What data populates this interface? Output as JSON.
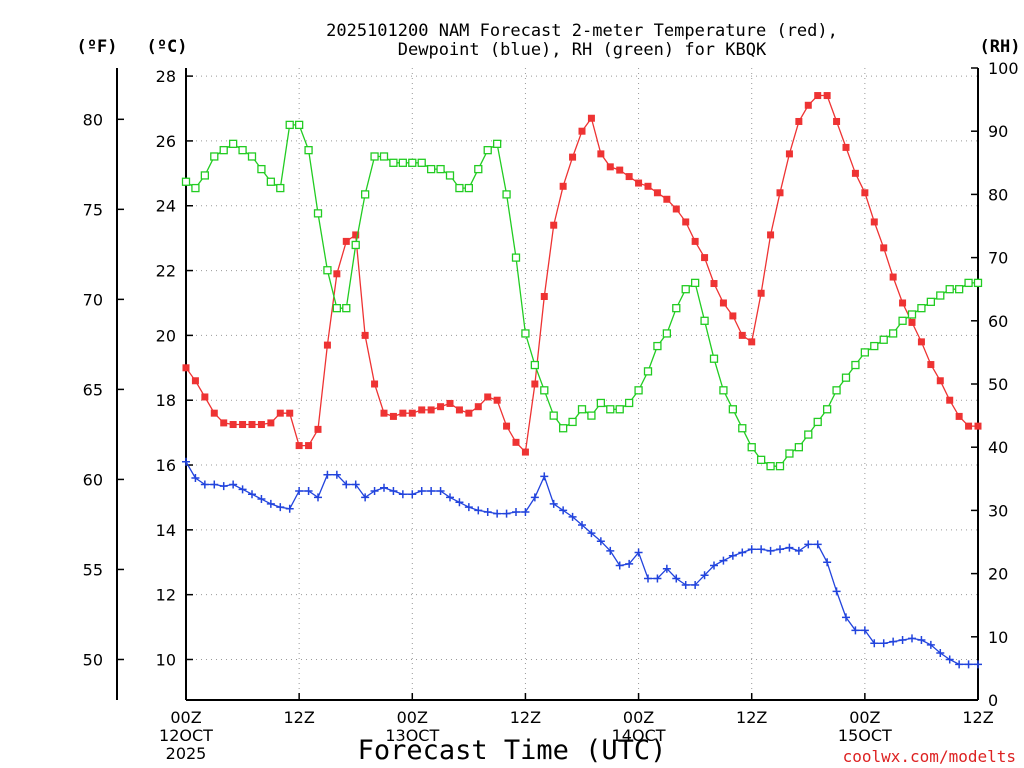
{
  "chart_data": {
    "type": "line",
    "title": {
      "line1": "2025101200 NAM Forecast 2-meter Temperature (red),",
      "line2": "Dewpoint (blue), RH (green) for KBQK"
    },
    "unit_labels": {
      "fahrenheit": "(ºF)",
      "celsius": "(ºC)",
      "rh": "(RH)"
    },
    "xlabel": "Forecast Time (UTC)",
    "credit": "coolwx.com/modelts",
    "x_unit": "forecast hour",
    "xlim": [
      0,
      84
    ],
    "x_ticks": [
      {
        "hour": 0,
        "label": "00Z",
        "date": "12OCT",
        "year": "2025"
      },
      {
        "hour": 12,
        "label": "12Z",
        "date": "",
        "year": ""
      },
      {
        "hour": 24,
        "label": "00Z",
        "date": "13OCT",
        "year": ""
      },
      {
        "hour": 36,
        "label": "12Z",
        "date": "",
        "year": ""
      },
      {
        "hour": 48,
        "label": "00Z",
        "date": "14OCT",
        "year": ""
      },
      {
        "hour": 60,
        "label": "12Z",
        "date": "",
        "year": ""
      },
      {
        "hour": 72,
        "label": "00Z",
        "date": "15OCT",
        "year": ""
      },
      {
        "hour": 84,
        "label": "12Z",
        "date": "",
        "year": ""
      }
    ],
    "ylim_celsius": [
      8.75,
      28.25
    ],
    "celsius_ticks": [
      10,
      12,
      14,
      16,
      18,
      20,
      22,
      24,
      26,
      28
    ],
    "fahrenheit_ticks": [
      50,
      55,
      60,
      65,
      70,
      75,
      80
    ],
    "ylim_rh": [
      0,
      100
    ],
    "rh_ticks": [
      0,
      10,
      20,
      30,
      40,
      50,
      60,
      70,
      80,
      90,
      100
    ],
    "grid": true,
    "series": [
      {
        "name": "2-meter Temperature",
        "axis": "celsius",
        "color": "#ee3333",
        "marker": "filled-square",
        "x": [
          0,
          1,
          2,
          3,
          4,
          5,
          6,
          7,
          8,
          9,
          10,
          11,
          12,
          13,
          14,
          15,
          16,
          17,
          18,
          19,
          20,
          21,
          22,
          23,
          24,
          25,
          26,
          27,
          28,
          29,
          30,
          31,
          32,
          33,
          34,
          35,
          36,
          37,
          38,
          39,
          40,
          41,
          42,
          43,
          44,
          45,
          46,
          47,
          48,
          49,
          50,
          51,
          52,
          53,
          54,
          55,
          56,
          57,
          58,
          59,
          60,
          61,
          62,
          63,
          64,
          65,
          66,
          67,
          68,
          69,
          70,
          71,
          72,
          73,
          74,
          75,
          76,
          77,
          78,
          79,
          80,
          81,
          82,
          83,
          84
        ],
        "values": [
          19.0,
          18.6,
          18.1,
          17.6,
          17.3,
          17.25,
          17.25,
          17.25,
          17.25,
          17.3,
          17.6,
          17.6,
          16.6,
          16.6,
          17.1,
          19.7,
          21.9,
          22.9,
          23.1,
          20.0,
          18.5,
          17.6,
          17.5,
          17.6,
          17.6,
          17.7,
          17.7,
          17.8,
          17.9,
          17.7,
          17.6,
          17.8,
          18.1,
          18.0,
          17.2,
          16.7,
          16.4,
          18.5,
          21.2,
          23.4,
          24.6,
          25.5,
          26.3,
          26.7,
          25.6,
          25.2,
          25.1,
          24.9,
          24.7,
          24.6,
          24.4,
          24.2,
          23.9,
          23.5,
          22.9,
          22.4,
          21.6,
          21.0,
          20.6,
          20.0,
          19.8,
          21.3,
          23.1,
          24.4,
          25.6,
          26.6,
          27.1,
          27.4,
          27.4,
          26.6,
          25.8,
          25.0,
          24.4,
          23.5,
          22.7,
          21.8,
          21.0,
          20.4,
          19.8,
          19.1,
          18.6,
          18.0,
          17.5,
          17.2,
          17.2
        ]
      },
      {
        "name": "Dewpoint",
        "axis": "celsius",
        "color": "#2244dd",
        "marker": "plus",
        "x": [
          0,
          1,
          2,
          3,
          4,
          5,
          6,
          7,
          8,
          9,
          10,
          11,
          12,
          13,
          14,
          15,
          16,
          17,
          18,
          19,
          20,
          21,
          22,
          23,
          24,
          25,
          26,
          27,
          28,
          29,
          30,
          31,
          32,
          33,
          34,
          35,
          36,
          37,
          38,
          39,
          40,
          41,
          42,
          43,
          44,
          45,
          46,
          47,
          48,
          49,
          50,
          51,
          52,
          53,
          54,
          55,
          56,
          57,
          58,
          59,
          60,
          61,
          62,
          63,
          64,
          65,
          66,
          67,
          68,
          69,
          70,
          71,
          72,
          73,
          74,
          75,
          76,
          77,
          78,
          79,
          80,
          81,
          82,
          83,
          84
        ],
        "values": [
          16.1,
          15.6,
          15.4,
          15.4,
          15.35,
          15.4,
          15.25,
          15.1,
          14.95,
          14.8,
          14.7,
          14.65,
          15.2,
          15.2,
          15.0,
          15.7,
          15.7,
          15.4,
          15.4,
          15.0,
          15.2,
          15.3,
          15.2,
          15.1,
          15.1,
          15.2,
          15.2,
          15.2,
          15.0,
          14.85,
          14.7,
          14.6,
          14.55,
          14.5,
          14.5,
          14.55,
          14.55,
          15.0,
          15.65,
          14.8,
          14.6,
          14.4,
          14.15,
          13.9,
          13.65,
          13.35,
          12.9,
          12.95,
          13.3,
          12.5,
          12.5,
          12.8,
          12.5,
          12.3,
          12.3,
          12.6,
          12.9,
          13.05,
          13.2,
          13.3,
          13.4,
          13.4,
          13.35,
          13.4,
          13.45,
          13.35,
          13.55,
          13.55,
          13.0,
          12.1,
          11.3,
          10.9,
          10.9,
          10.5,
          10.5,
          10.55,
          10.6,
          10.65,
          10.6,
          10.45,
          10.2,
          10.0,
          9.85,
          9.85,
          9.85
        ]
      },
      {
        "name": "RH",
        "axis": "rh",
        "color": "#22cc22",
        "marker": "open-square",
        "x": [
          0,
          1,
          2,
          3,
          4,
          5,
          6,
          7,
          8,
          9,
          10,
          11,
          12,
          13,
          14,
          15,
          16,
          17,
          18,
          19,
          20,
          21,
          22,
          23,
          24,
          25,
          26,
          27,
          28,
          29,
          30,
          31,
          32,
          33,
          34,
          35,
          36,
          37,
          38,
          39,
          40,
          41,
          42,
          43,
          44,
          45,
          46,
          47,
          48,
          49,
          50,
          51,
          52,
          53,
          54,
          55,
          56,
          57,
          58,
          59,
          60,
          61,
          62,
          63,
          64,
          65,
          66,
          67,
          68,
          69,
          70,
          71,
          72,
          73,
          74,
          75,
          76,
          77,
          78,
          79,
          80,
          81,
          82,
          83,
          84
        ],
        "values": [
          82,
          81,
          83,
          86,
          87,
          88,
          87,
          86,
          84,
          82,
          81,
          91,
          91,
          87,
          77,
          68,
          62,
          62,
          72,
          80,
          86,
          86,
          85,
          85,
          85,
          85,
          84,
          84,
          83,
          81,
          81,
          84,
          87,
          88,
          80,
          70,
          58,
          53,
          49,
          45,
          43,
          44,
          46,
          45,
          47,
          46,
          46,
          47,
          49,
          52,
          56,
          58,
          62,
          65,
          66,
          60,
          54,
          49,
          46,
          43,
          40,
          38,
          37,
          37,
          39,
          40,
          42,
          44,
          46,
          49,
          51,
          53,
          55,
          56,
          57,
          58,
          60,
          61,
          62,
          63,
          64,
          65,
          65,
          66,
          66
        ]
      }
    ]
  }
}
